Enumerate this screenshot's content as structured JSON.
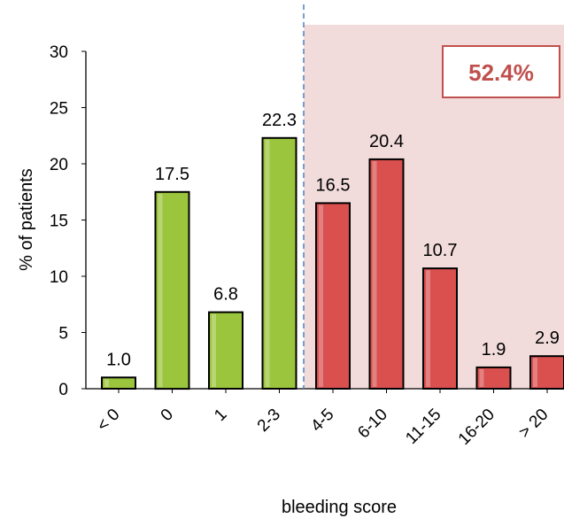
{
  "chart_data": {
    "type": "bar",
    "title": "",
    "xlabel": "bleeding score",
    "ylabel": "% of patients",
    "ylim": [
      0,
      30
    ],
    "yticks": [
      0,
      5,
      10,
      15,
      20,
      25,
      30
    ],
    "grid": false,
    "categories": [
      "< 0",
      "0",
      "1",
      "2-3",
      "4-5",
      "6-10",
      "11-15",
      "16-20",
      "> 20"
    ],
    "values": [
      1.0,
      17.5,
      6.8,
      22.3,
      16.5,
      20.4,
      10.7,
      1.9,
      2.9
    ],
    "data_labels": [
      "1.0",
      "17.5",
      "6.8",
      "22.3",
      "16.5",
      "20.4",
      "10.7",
      "1.9",
      "2.9"
    ],
    "bar_groups": [
      {
        "categories": [
          "< 0",
          "0",
          "1",
          "2-3"
        ],
        "color": "#9bc53d"
      },
      {
        "categories": [
          "4-5",
          "6-10",
          "11-15",
          "16-20",
          "> 20"
        ],
        "color": "#d9504f"
      }
    ],
    "threshold_line": {
      "between": [
        "2-3",
        "4-5"
      ],
      "style": "dashed",
      "color": "#4f81bd"
    },
    "shaded_region": {
      "from_category": "4-5",
      "to_category": "> 20",
      "color": "#f2dcdb"
    },
    "annotation": {
      "text": "52.4%",
      "color": "#c0504d"
    }
  }
}
